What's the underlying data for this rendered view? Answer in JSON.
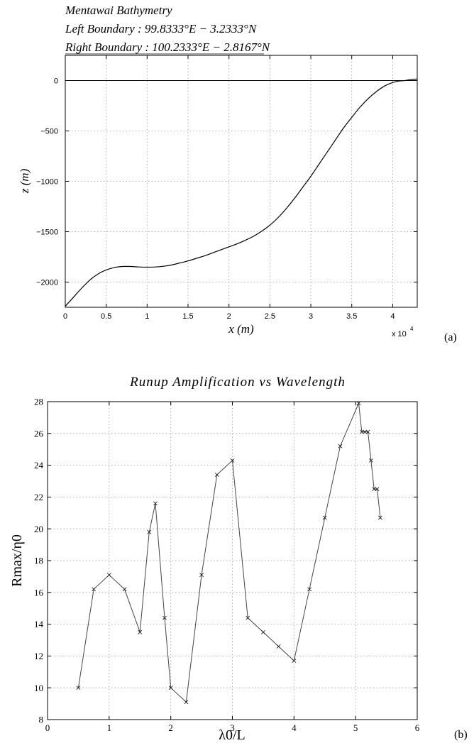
{
  "panel_a": {
    "header_line1": "Mentawai Bathymetry",
    "header_line2": "Left Boundary :  99.8333°E     − 3.2333°N",
    "header_line3": "Right Boundary :  100.2333°E     − 2.8167°N",
    "label": "(a)",
    "xlabel": "x (m)",
    "ylabel": "z (m)",
    "x_exponent": "x 10",
    "x_exponent_power": "4"
  },
  "panel_b": {
    "label": "(b)"
  },
  "chart_data": [
    {
      "type": "line",
      "xlim": [
        0,
        43000
      ],
      "ylim": [
        -2250,
        250
      ],
      "xticks": [
        0,
        5000,
        10000,
        15000,
        20000,
        25000,
        30000,
        35000,
        40000
      ],
      "xtick_labels": [
        "0",
        "0.5",
        "1",
        "1.5",
        "2",
        "2.5",
        "3",
        "3.5",
        "4"
      ],
      "yticks": [
        0,
        -500,
        -1000,
        -1500,
        -2000
      ],
      "ytick_labels": [
        "0",
        "−500",
        "−1000",
        "−1500",
        "−2000"
      ],
      "grid": true,
      "reference_line_y": 0,
      "series": [
        {
          "x": [
            0,
            1000,
            2000,
            3000,
            4000,
            5000,
            6000,
            7000,
            8000,
            9000,
            10000,
            11000,
            12000,
            13000,
            14000,
            15000,
            16000,
            17000,
            18000,
            19000,
            20000,
            21000,
            22000,
            23000,
            24000,
            25000,
            26000,
            27000,
            28000,
            29000,
            30000,
            31000,
            32000,
            33000,
            34000,
            35000,
            36000,
            37000,
            38000,
            39000,
            40000,
            40800,
            41500,
            42200,
            43000
          ],
          "y": [
            -2240,
            -2150,
            -2060,
            -1980,
            -1920,
            -1880,
            -1855,
            -1845,
            -1845,
            -1850,
            -1852,
            -1850,
            -1843,
            -1830,
            -1810,
            -1790,
            -1765,
            -1740,
            -1710,
            -1680,
            -1650,
            -1620,
            -1585,
            -1545,
            -1495,
            -1435,
            -1360,
            -1270,
            -1170,
            -1060,
            -950,
            -830,
            -710,
            -590,
            -470,
            -365,
            -265,
            -180,
            -110,
            -55,
            -20,
            -5,
            0,
            10,
            15
          ]
        }
      ]
    },
    {
      "type": "line",
      "title": "Runup Amplification vs Wavelength",
      "xlabel": "λ0/L",
      "ylabel": "Rmax/η0",
      "xlim": [
        0,
        6
      ],
      "ylim": [
        8,
        28
      ],
      "xticks": [
        0,
        1,
        2,
        3,
        4,
        5,
        6
      ],
      "yticks": [
        8,
        10,
        12,
        14,
        16,
        18,
        20,
        22,
        24,
        26,
        28
      ],
      "grid": true,
      "marker": "x",
      "series": [
        {
          "x": [
            0.5,
            0.75,
            1.0,
            1.25,
            1.5,
            1.65,
            1.75,
            1.9,
            2.0,
            2.25,
            2.5,
            2.75,
            3.0,
            3.25,
            3.5,
            3.75,
            4.0,
            4.25,
            4.5,
            4.75,
            5.05,
            5.1,
            5.15,
            5.2,
            5.25,
            5.3,
            5.35,
            5.4
          ],
          "y": [
            10.0,
            16.2,
            17.1,
            16.2,
            13.5,
            19.8,
            21.6,
            14.4,
            10.0,
            9.1,
            17.1,
            23.4,
            24.3,
            14.4,
            13.5,
            12.6,
            11.7,
            16.2,
            20.7,
            25.2,
            27.9,
            26.1,
            26.1,
            26.1,
            24.3,
            22.5,
            22.5,
            20.7
          ]
        }
      ]
    }
  ]
}
